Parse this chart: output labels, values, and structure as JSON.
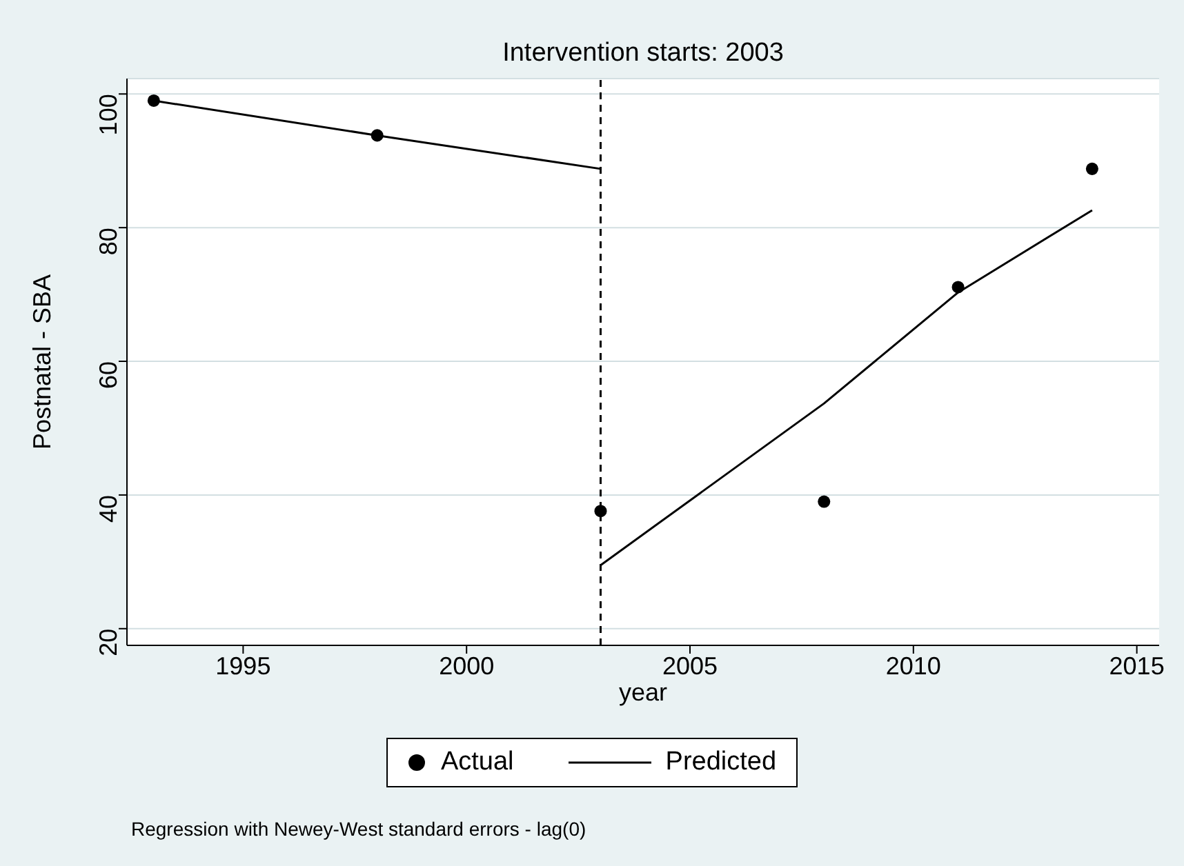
{
  "chart_data": {
    "type": "scatter",
    "title": "Intervention starts: 2003",
    "xlabel": "year",
    "ylabel": "Postnatal - SBA",
    "xlim": [
      1992.4,
      2015.5
    ],
    "xticks": [
      1995,
      2000,
      2005,
      2010,
      2015
    ],
    "ylim": [
      17.5,
      102.3
    ],
    "yticks": [
      20,
      40,
      60,
      80,
      100
    ],
    "grid": "y",
    "legend": "bottom",
    "series": [
      {
        "name": "Actual",
        "color": "#000000",
        "marker": "circle",
        "x": [
          1993,
          1998,
          2003,
          2008,
          2011,
          2014
        ],
        "values": [
          99,
          93.8,
          37.6,
          39,
          71.1,
          88.8
        ]
      },
      {
        "name": "Predicted",
        "type": "line",
        "color": "#000000",
        "line_style": "solid",
        "x": [
          1993,
          1998,
          2003
        ],
        "values": [
          99,
          93.8,
          88.8
        ]
      },
      {
        "type": "line",
        "color": "#000000",
        "line_style": "solid",
        "x": [
          2003,
          2008,
          2011,
          2014
        ],
        "values": [
          29.5,
          53.7,
          70.3,
          82.6
        ]
      }
    ],
    "ref_lines": [
      {
        "axis": "x",
        "value": 2003,
        "color": "#000000",
        "line_style": "dashed"
      }
    ],
    "annotations": [
      "Regression with Newey-West standard errors - lag(0)"
    ]
  }
}
